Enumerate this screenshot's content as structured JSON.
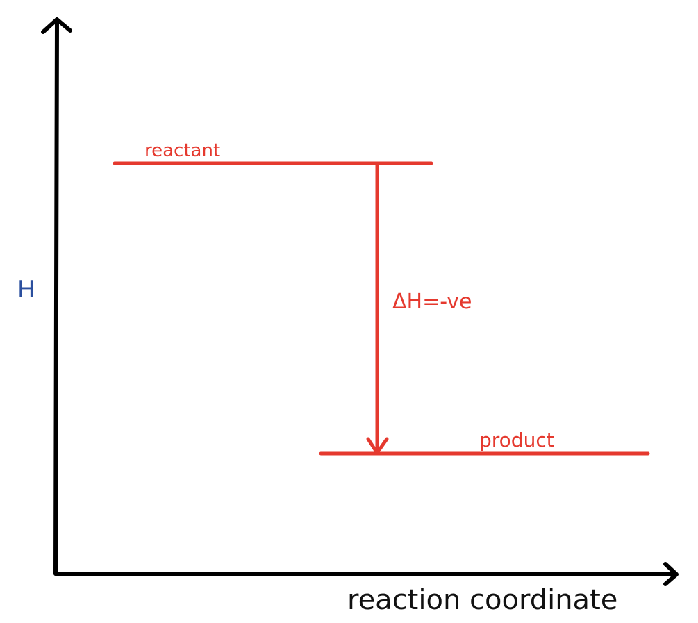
{
  "diagram": {
    "y_axis_label": "H",
    "x_axis_label": "reaction coordinate",
    "reactant_label": "reactant",
    "product_label": "product",
    "delta_label": "ΔH=-ve"
  },
  "colors": {
    "axis": "#000000",
    "y_axis_label": "#2b4f9e",
    "x_axis_label": "#111111",
    "diagram_red": "#e5392e"
  }
}
